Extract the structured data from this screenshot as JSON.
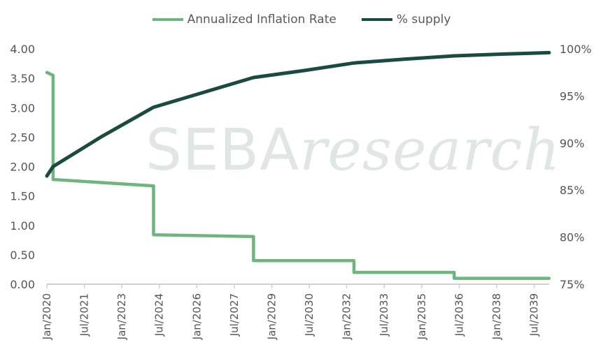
{
  "chart_data": {
    "type": "line",
    "title": "",
    "watermark": "SEBAresearch",
    "legend_position": "top-center",
    "x_range": [
      2020.0,
      2040.1
    ],
    "x_ticks": [
      "Jan/2020",
      "Jul/2021",
      "Jan/2023",
      "Jul/2024",
      "Jan/2026",
      "Jul/2027",
      "Jan/2029",
      "Jul/2030",
      "Jan/2032",
      "Jul/2033",
      "Jan/2035",
      "Jul/2036",
      "Jan/2038",
      "Jul/2039"
    ],
    "x_tick_values": [
      2020.0,
      2021.5,
      2023.0,
      2024.5,
      2026.0,
      2027.5,
      2029.0,
      2030.5,
      2032.0,
      2033.5,
      2035.0,
      2036.5,
      2038.0,
      2039.5
    ],
    "y_left": {
      "range": [
        0,
        4
      ],
      "ticks": [
        "0.00",
        "0.50",
        "1.00",
        "1.50",
        "2.00",
        "2.50",
        "3.00",
        "3.50",
        "4.00"
      ]
    },
    "y_right": {
      "range": [
        75,
        100
      ],
      "ticks": [
        "75%",
        "80%",
        "85%",
        "90%",
        "95%",
        "100%"
      ]
    },
    "grid": false,
    "series": [
      {
        "name": "Annualized Inflation Rate",
        "axis": "left",
        "color": "#6db57c",
        "points": [
          [
            2020.0,
            3.6
          ],
          [
            2020.25,
            3.55
          ],
          [
            2020.25,
            1.78
          ],
          [
            2024.27,
            1.67
          ],
          [
            2024.27,
            0.84
          ],
          [
            2028.27,
            0.81
          ],
          [
            2028.27,
            0.4
          ],
          [
            2032.29,
            0.4
          ],
          [
            2032.29,
            0.2
          ],
          [
            2036.3,
            0.2
          ],
          [
            2036.3,
            0.1
          ],
          [
            2040.1,
            0.1
          ]
        ]
      },
      {
        "name": "% supply",
        "axis": "right",
        "color": "#1a4a40",
        "points": [
          [
            2020.0,
            86.5
          ],
          [
            2020.25,
            87.5
          ],
          [
            2022.2,
            90.7
          ],
          [
            2024.27,
            93.8
          ],
          [
            2026.3,
            95.4
          ],
          [
            2028.27,
            96.96
          ],
          [
            2030.3,
            97.7
          ],
          [
            2032.29,
            98.5
          ],
          [
            2034.3,
            98.9
          ],
          [
            2036.3,
            99.26
          ],
          [
            2038.3,
            99.45
          ],
          [
            2040.1,
            99.6
          ]
        ]
      }
    ]
  }
}
